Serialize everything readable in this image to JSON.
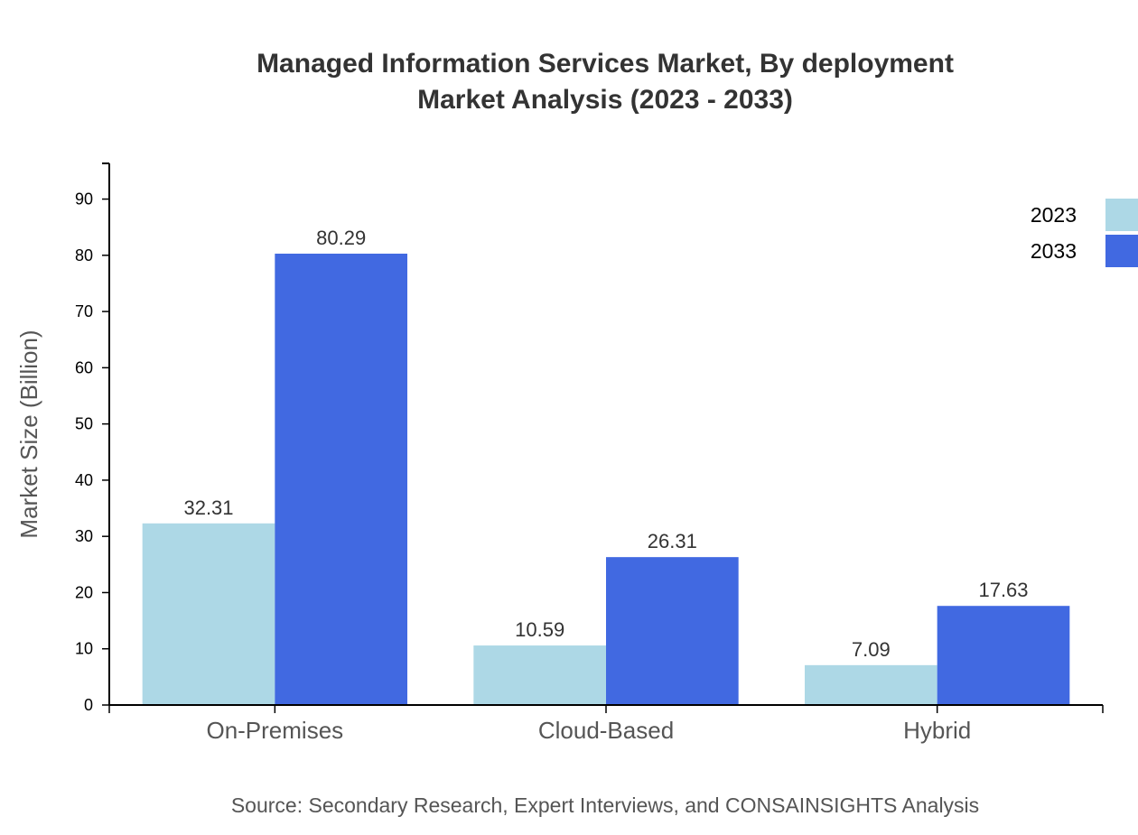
{
  "chart_data": {
    "type": "bar",
    "title": "Managed Information Services Market, By deployment",
    "subtitle": "Market Analysis (2023 - 2033)",
    "xlabel": "",
    "ylabel": "Market Size (Billion)",
    "categories": [
      "On-Premises",
      "Cloud-Based",
      "Hybrid"
    ],
    "series": [
      {
        "name": "2023",
        "values": [
          32.31,
          10.59,
          7.09
        ],
        "color": "#ADD8E6"
      },
      {
        "name": "2033",
        "values": [
          80.29,
          26.31,
          17.63
        ],
        "color": "#4169E1"
      }
    ],
    "ylim": [
      0,
      96.35
    ],
    "yticks": [
      0,
      10,
      20,
      30,
      40,
      50,
      60,
      70,
      80,
      90
    ],
    "grid": false,
    "legend": "top-right",
    "source": "Source: Secondary Research, Expert Interviews, and CONSAINSIGHTS Analysis"
  }
}
